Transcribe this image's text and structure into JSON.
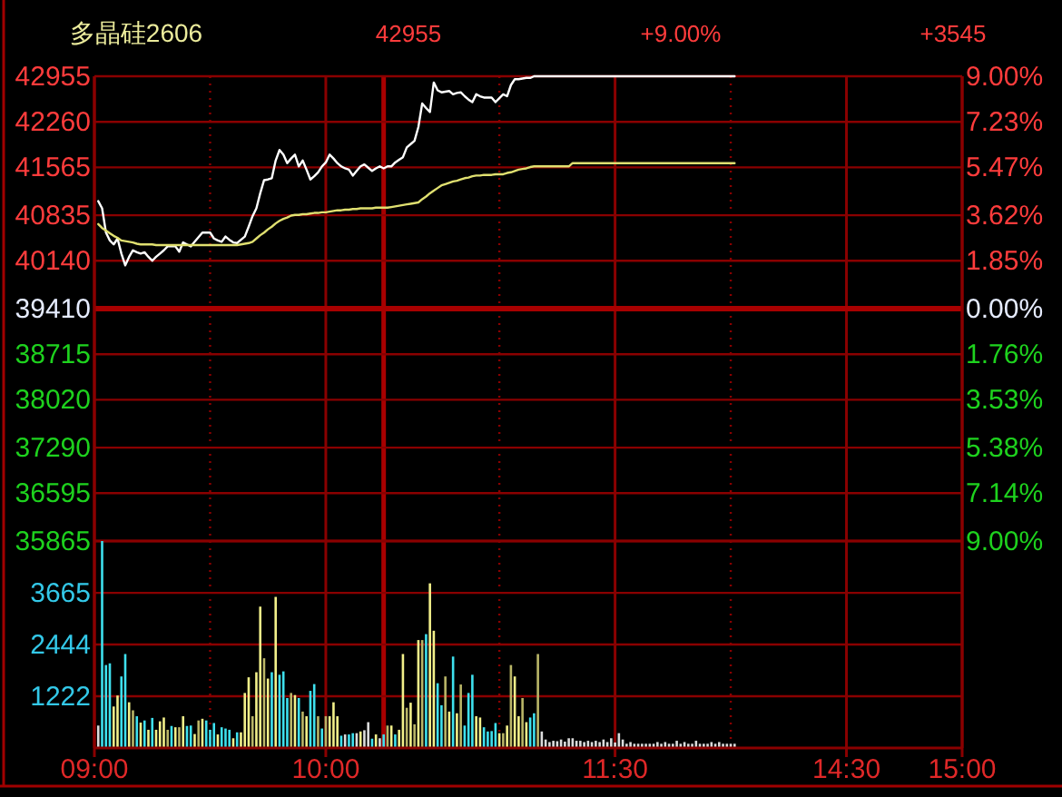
{
  "chart_data": [
    {
      "type": "line",
      "title": "多晶硅2606",
      "annotations": [
        "42955",
        "+9.00%",
        "+3545"
      ],
      "categories": [
        null,
        null,
        null,
        null,
        null,
        null,
        null,
        null,
        null,
        null,
        null,
        null,
        null,
        null,
        null,
        null,
        null,
        null,
        null,
        null,
        null,
        null,
        null,
        null,
        null,
        null,
        null,
        null,
        null,
        null,
        null,
        null,
        null,
        null,
        null,
        null,
        null,
        null,
        null,
        null,
        null,
        null,
        null,
        null,
        null,
        null,
        null,
        null,
        null,
        null,
        null,
        null,
        null,
        null,
        null,
        null,
        null,
        null,
        null,
        null,
        null,
        null,
        null,
        null,
        null,
        null,
        null,
        null,
        null,
        null,
        null,
        null,
        null,
        null,
        null,
        null,
        null,
        null,
        null,
        null,
        null,
        null,
        null,
        null,
        null,
        null,
        null,
        null,
        null,
        null,
        null,
        null,
        null,
        null,
        null,
        null,
        null,
        null,
        null,
        null,
        null,
        null,
        null,
        null,
        null,
        null,
        null,
        null,
        null,
        null,
        null,
        null,
        null,
        null,
        null,
        null,
        null,
        null,
        null,
        null,
        null,
        null,
        null,
        null,
        null,
        null,
        null,
        null,
        null,
        null,
        null,
        null,
        null,
        null,
        null,
        null,
        null,
        null,
        null,
        null,
        null,
        null,
        null,
        null,
        null,
        null,
        null,
        null,
        null,
        null,
        null,
        null,
        null,
        null,
        null,
        null,
        null,
        null,
        null,
        null,
        null,
        null,
        null,
        null,
        null,
        null,
        null,
        null,
        null,
        null,
        null,
        null,
        null,
        null,
        null,
        null,
        null,
        null,
        null,
        null,
        null,
        null,
        null,
        null,
        null,
        null,
        null,
        null,
        null,
        null,
        null,
        null,
        null,
        null,
        null,
        null,
        null,
        null,
        null,
        null,
        null,
        null,
        null,
        null,
        null,
        null,
        null,
        null,
        null,
        null,
        null,
        null,
        null,
        null,
        null,
        null,
        null,
        null,
        null,
        null,
        null,
        null,
        null,
        null,
        null,
        null
      ],
      "ylim": [
        35865,
        42955
      ],
      "yticks": [
        35865,
        36595,
        37290,
        38020,
        38715,
        39410,
        40140,
        40835,
        41565,
        42260,
        42955
      ],
      "y2lim": [
        -9,
        9
      ],
      "y2ticks": [
        {
          "value": -9,
          "label": "9.00%"
        },
        {
          "value": -7.14,
          "label": "7.14%"
        },
        {
          "value": -5.38,
          "label": "5.38%"
        },
        {
          "value": -3.53,
          "label": "3.53%"
        },
        {
          "value": -1.76,
          "label": "1.76%"
        },
        {
          "value": 0,
          "label": "0.00%"
        },
        {
          "value": 1.85,
          "label": "1.85%"
        },
        {
          "value": 3.62,
          "label": "3.62%"
        },
        {
          "value": 5.47,
          "label": "5.47%"
        },
        {
          "value": 7.23,
          "label": "7.23%"
        },
        {
          "value": 9,
          "label": "9.00%"
        }
      ],
      "grid": true,
      "ref_lines": [
        {
          "axis": "y",
          "value": 39410
        }
      ],
      "series": [
        {
          "color": "#ffffff",
          "values": [
            null,
            41050,
            40940,
            40570,
            40450,
            40390,
            40480,
            40250,
            40070,
            40200,
            40300,
            40270,
            40250,
            40270,
            40200,
            40140,
            40200,
            40250,
            40300,
            40360,
            40360,
            40360,
            40280,
            40420,
            40390,
            40360,
            40430,
            40500,
            40570,
            40570,
            40570,
            40480,
            40450,
            40430,
            40510,
            40460,
            40420,
            40410,
            40460,
            40510,
            40660,
            40820,
            40940,
            41170,
            41370,
            41380,
            41400,
            41670,
            41830,
            41760,
            41630,
            41700,
            41760,
            41580,
            41670,
            41530,
            41380,
            41430,
            41490,
            41580,
            41640,
            41760,
            41700,
            41630,
            41580,
            41550,
            41530,
            41440,
            41510,
            41580,
            41610,
            41560,
            41510,
            41550,
            41580,
            41550,
            41580,
            41580,
            41640,
            41680,
            41720,
            41870,
            41920,
            41970,
            42180,
            42540,
            42470,
            42410,
            42860,
            42740,
            42710,
            42720,
            42730,
            42680,
            42700,
            42710,
            42650,
            42600,
            42560,
            42680,
            42650,
            42630,
            42630,
            42630,
            42560,
            42620,
            42680,
            42650,
            42820,
            42910,
            42910,
            42920,
            42930,
            42930,
            42955,
            42955,
            42955,
            42955,
            42955,
            42955,
            42955,
            42955,
            42955,
            42955,
            42955,
            42955,
            42955,
            42955,
            42955,
            42955,
            42955,
            42955,
            42955,
            42955,
            42955,
            42955,
            42955,
            42955,
            42955,
            42955,
            42955,
            42955,
            42955,
            42955,
            42955,
            42955,
            42955,
            42955,
            42955,
            42955,
            42955,
            42955,
            42955,
            42955,
            42955,
            42955,
            42955,
            42955,
            42955,
            42955,
            42955,
            42955,
            42955,
            42955,
            42955,
            42955,
            42955,
            null,
            null,
            null,
            null,
            null,
            null,
            null,
            null,
            null,
            null,
            null,
            null,
            null,
            null,
            null,
            null,
            null,
            null,
            null,
            null,
            null,
            null,
            null,
            null,
            null,
            null,
            null,
            null,
            null,
            null,
            null,
            null,
            null,
            null,
            null,
            null,
            null,
            null,
            null,
            null,
            null,
            null,
            null,
            null,
            null,
            null,
            null,
            null,
            null,
            null,
            null,
            null,
            null,
            null,
            null,
            null,
            null,
            null,
            null
          ]
        },
        {
          "color": "#e0e070",
          "values": [
            null,
            40700,
            40640,
            40600,
            40560,
            40520,
            40490,
            40450,
            40440,
            40430,
            40420,
            40400,
            40390,
            40390,
            40390,
            40390,
            40380,
            40380,
            40380,
            40380,
            40380,
            40380,
            40380,
            40380,
            40380,
            40380,
            40380,
            40380,
            40380,
            40380,
            40380,
            40380,
            40380,
            40380,
            40380,
            40380,
            40380,
            40380,
            40390,
            40400,
            40410,
            40430,
            40480,
            40530,
            40570,
            40620,
            40660,
            40710,
            40750,
            40780,
            40800,
            40830,
            40840,
            40840,
            40850,
            40850,
            40860,
            40870,
            40870,
            40880,
            40880,
            40890,
            40900,
            40910,
            40910,
            40920,
            40920,
            40930,
            40930,
            40940,
            40940,
            40940,
            40940,
            40950,
            40950,
            40950,
            40950,
            40960,
            40970,
            40980,
            40990,
            41000,
            41010,
            41020,
            41030,
            41080,
            41120,
            41170,
            41210,
            41250,
            41290,
            41310,
            41330,
            41350,
            41360,
            41380,
            41400,
            41410,
            41430,
            41440,
            41440,
            41450,
            41450,
            41450,
            41460,
            41460,
            41460,
            41480,
            41490,
            41510,
            41530,
            41540,
            41550,
            41570,
            41580,
            41580,
            41580,
            41580,
            41580,
            41580,
            41580,
            41580,
            41580,
            41580,
            41630,
            41630,
            41630,
            41630,
            41630,
            41630,
            41630,
            41630,
            41630,
            41630,
            41630,
            41630,
            41630,
            41630,
            41630,
            41630,
            41630,
            41630,
            41630,
            41630,
            41630,
            41630,
            41630,
            41630,
            41630,
            41630,
            41630,
            41630,
            41630,
            41630,
            41630,
            41630,
            41630,
            41630,
            41630,
            41630,
            41630,
            41630,
            41630,
            41630,
            41630,
            41630,
            41630,
            null,
            null,
            null,
            null,
            null,
            null,
            null,
            null,
            null,
            null,
            null,
            null,
            null,
            null,
            null,
            null,
            null,
            null,
            null,
            null,
            null,
            null,
            null,
            null,
            null,
            null,
            null,
            null,
            null,
            null,
            null,
            null,
            null,
            null,
            null,
            null,
            null,
            null,
            null,
            null,
            null,
            null,
            null,
            null,
            null,
            null,
            null,
            null,
            null,
            null,
            null,
            null,
            null,
            null,
            null,
            null,
            null,
            null,
            null
          ]
        }
      ]
    },
    {
      "type": "bar",
      "categories": [
        "09:00",
        null,
        null,
        null,
        null,
        null,
        null,
        null,
        null,
        null,
        null,
        null,
        null,
        null,
        null,
        null,
        null,
        null,
        null,
        null,
        null,
        null,
        null,
        null,
        null,
        null,
        null,
        null,
        null,
        null,
        null,
        null,
        null,
        null,
        null,
        null,
        null,
        null,
        null,
        null,
        null,
        null,
        null,
        null,
        null,
        null,
        null,
        null,
        null,
        null,
        null,
        null,
        null,
        null,
        null,
        null,
        null,
        null,
        null,
        null,
        "10:00",
        null,
        null,
        null,
        null,
        null,
        null,
        null,
        null,
        null,
        null,
        null,
        null,
        null,
        null,
        null,
        null,
        null,
        null,
        null,
        null,
        null,
        null,
        null,
        null,
        null,
        null,
        null,
        null,
        null,
        null,
        null,
        null,
        null,
        null,
        null,
        null,
        null,
        null,
        null,
        null,
        null,
        null,
        null,
        null,
        null,
        null,
        null,
        null,
        null,
        null,
        null,
        null,
        null,
        null,
        null,
        null,
        null,
        null,
        null,
        null,
        null,
        null,
        null,
        null,
        null,
        null,
        null,
        null,
        null,
        null,
        null,
        null,
        null,
        null,
        "11:30",
        null,
        null,
        null,
        null,
        null,
        null,
        null,
        null,
        null,
        null,
        null,
        null,
        null,
        null,
        null,
        null,
        null,
        null,
        null,
        null,
        null,
        null,
        null,
        null,
        null,
        null,
        null,
        null,
        null,
        null,
        null,
        null,
        null,
        null,
        null,
        null,
        null,
        null,
        null,
        null,
        null,
        null,
        null,
        null,
        null,
        null,
        null,
        null,
        null,
        null,
        null,
        null,
        null,
        null,
        null,
        null,
        null,
        null,
        null,
        "14:30",
        null,
        null,
        null,
        null,
        null,
        null,
        null,
        null,
        null,
        null,
        null,
        null,
        null,
        null,
        null,
        null,
        null,
        null,
        null,
        null,
        null,
        null,
        null,
        null,
        null,
        null,
        null,
        null,
        null,
        "15:00"
      ],
      "ylim": [
        0,
        4890
      ],
      "yticks": [
        1222,
        2444,
        3665
      ],
      "grid": true,
      "values": [
        null,
        530,
        4890,
        1960,
        2000,
        980,
        1240,
        1690,
        2220,
        1080,
        890,
        750,
        600,
        650,
        430,
        710,
        430,
        630,
        720,
        430,
        520,
        490,
        490,
        750,
        520,
        530,
        330,
        650,
        690,
        650,
        430,
        590,
        320,
        490,
        460,
        430,
        230,
        370,
        370,
        1300,
        1670,
        750,
        1790,
        3340,
        2120,
        1640,
        1790,
        3570,
        1730,
        1810,
        1180,
        1300,
        1250,
        1180,
        860,
        750,
        1350,
        1510,
        750,
        460,
        750,
        750,
        1080,
        750,
        290,
        320,
        320,
        350,
        350,
        390,
        420,
        610,
        220,
        320,
        230,
        320,
        530,
        530,
        320,
        430,
        2220,
        950,
        1070,
        560,
        2550,
        2550,
        2690,
        3890,
        2770,
        1530,
        1010,
        1690,
        860,
        2160,
        820,
        1500,
        530,
        1300,
        1730,
        750,
        720,
        490,
        390,
        400,
        590,
        350,
        350,
        530,
        1960,
        1690,
        750,
        1180,
        610,
        720,
        820,
        2220,
        390,
        200,
        140,
        170,
        160,
        200,
        150,
        230,
        230,
        170,
        170,
        140,
        170,
        140,
        170,
        140,
        200,
        140,
        230,
        130,
        350,
        200,
        100,
        140,
        100,
        100,
        100,
        100,
        100,
        100,
        140,
        100,
        140,
        100,
        100,
        170,
        100,
        140,
        100,
        100,
        170,
        100,
        100,
        100,
        140,
        100,
        140,
        100,
        100,
        100,
        100,
        null,
        null,
        null,
        null,
        null,
        null,
        null,
        null,
        null,
        null,
        null,
        null,
        null,
        null,
        null,
        null,
        null,
        null,
        null,
        null,
        null,
        null,
        null,
        null,
        null,
        null,
        null,
        null,
        null,
        null,
        null,
        null,
        null,
        null,
        null,
        null,
        null,
        null,
        null,
        null,
        null,
        null,
        null,
        null,
        null,
        null,
        null,
        null,
        null,
        null,
        null,
        null,
        null,
        null,
        null,
        null,
        null,
        null,
        null
      ],
      "colors": [
        null,
        "#dcdcdc",
        "#3ee0ee",
        "#3ee0ee",
        "#3ee0ee",
        "#f2f08a",
        "#f2f08a",
        "#3ee0ee",
        "#3ee0ee",
        "#f2f08a",
        "#b9b567",
        "#3ee0ee",
        "#f2f08a",
        "#3ee0ee",
        "#f2f08a",
        "#3ee0ee",
        "#f2f08a",
        "#f2f08a",
        "#f2f08a",
        "#b9b567",
        "#3ee0ee",
        "#f2f08a",
        "#b9b567",
        "#f2f08a",
        "#3ee0ee",
        "#3ee0ee",
        "#f2f08a",
        "#b9b567",
        "#f2f08a",
        "#3ee0ee",
        "#3ee0ee",
        "#3ee0ee",
        "#f2f08a",
        "#3ee0ee",
        "#3ee0ee",
        "#3ee0ee",
        "#f2f08a",
        "#3ee0ee",
        "#f2f08a",
        "#f2f08a",
        "#f2f08a",
        "#b9b567",
        "#f2f08a",
        "#f2f08a",
        "#b9b567",
        "#f2f08a",
        "#3ee0ee",
        "#f2f08a",
        "#3ee0ee",
        "#3ee0ee",
        "#3ee0ee",
        "#b9b567",
        "#f2f08a",
        "#3ee0ee",
        "#b9b567",
        "#f2f08a",
        "#3ee0ee",
        "#3ee0ee",
        "#b9b567",
        "#3ee0ee",
        "#b9b567",
        "#f2f08a",
        "#f2f08a",
        "#f2f08a",
        "#3ee0ee",
        "#dcdcdc",
        "#3ee0ee",
        "#3ee0ee",
        "#dcdcdc",
        "#f2f08a",
        "#dcdcdc",
        "#dcdcdc",
        "#3ee0ee",
        "#f2f08a",
        "#dcdcdc",
        "#3ee0ee",
        "#b9b567",
        "#f2f08a",
        "#3ee0ee",
        "#f2f08a",
        "#f2f08a",
        "#b9b567",
        "#f2f08a",
        "#b9b567",
        "#f2f08a",
        "#b9b567",
        "#3ee0ee",
        "#f2f08a",
        "#f2f08a",
        "#3ee0ee",
        "#3ee0ee",
        "#b9b567",
        "#f2f08a",
        "#3ee0ee",
        "#f2f08a",
        "#b9b567",
        "#3ee0ee",
        "#3ee0ee",
        "#3ee0ee",
        "#f2f08a",
        "#f2f08a",
        "#3ee0ee",
        "#3ee0ee",
        "#3ee0ee",
        "#3ee0ee",
        "#f2f08a",
        "#b9b567",
        "#f2f08a",
        "#b9b567",
        "#f2f08a",
        "#f2f08a",
        "#b9b567",
        "#f2f08a",
        "#3ee0ee",
        "#3ee0ee",
        "#b9b567",
        "#dcdcdc",
        "#dcdcdc",
        "#dcdcdc",
        "#dcdcdc",
        "#dcdcdc",
        "#dcdcdc",
        "#dcdcdc",
        "#dcdcdc",
        "#dcdcdc",
        "#dcdcdc",
        "#dcdcdc",
        "#dcdcdc",
        "#dcdcdc",
        "#dcdcdc",
        "#dcdcdc",
        "#dcdcdc",
        "#dcdcdc",
        "#dcdcdc",
        "#dcdcdc",
        "#dcdcdc",
        "#dcdcdc",
        "#dcdcdc",
        "#dcdcdc",
        "#dcdcdc",
        "#dcdcdc",
        "#dcdcdc",
        "#dcdcdc",
        "#dcdcdc",
        "#dcdcdc",
        "#dcdcdc",
        "#dcdcdc",
        "#dcdcdc",
        "#dcdcdc",
        "#dcdcdc",
        "#dcdcdc",
        "#dcdcdc",
        "#dcdcdc",
        "#dcdcdc",
        "#dcdcdc",
        "#dcdcdc",
        "#dcdcdc",
        "#dcdcdc",
        "#dcdcdc",
        "#dcdcdc",
        "#dcdcdc",
        "#dcdcdc",
        "#dcdcdc",
        "#dcdcdc",
        "#dcdcdc",
        "#dcdcdc",
        "#dcdcdc",
        null,
        null,
        null,
        null,
        null,
        null,
        null,
        null,
        null,
        null,
        null,
        null,
        null,
        null,
        null,
        null,
        null,
        null,
        null,
        null,
        null,
        null,
        null,
        null,
        null,
        null,
        null,
        null,
        null,
        null,
        null,
        null,
        null,
        null,
        null,
        null,
        null,
        null,
        null,
        null,
        null,
        null,
        null,
        null,
        null,
        null,
        null,
        null,
        null,
        null,
        null,
        null,
        null,
        null,
        null,
        null,
        null,
        null,
        null
      ]
    }
  ]
}
